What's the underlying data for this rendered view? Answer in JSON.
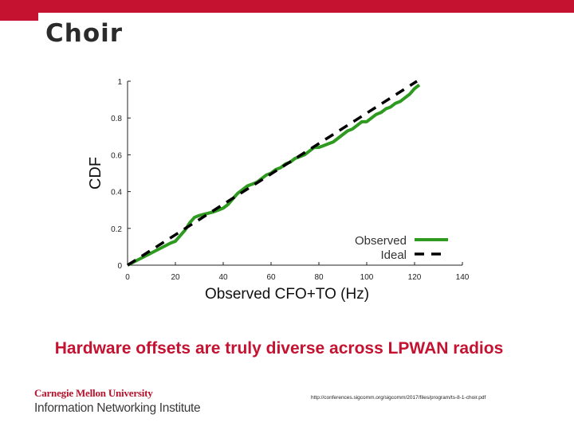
{
  "slide": {
    "title": "Choir",
    "caption": "Hardware offsets are truly diverse across LPWAN radios",
    "source_url": "http://conferences.sigcomm.org/sigcomm/2017/files/program/ts-8-1-choir.pdf",
    "logo": {
      "line1": "Carnegie Mellon University",
      "line2": "Information Networking Institute"
    },
    "colors": {
      "accent": "#c41230",
      "observed": "#2e9a1f",
      "ideal": "#000000"
    }
  },
  "chart_data": {
    "type": "line",
    "title": "",
    "xlabel": "Observed CFO+TO (Hz)",
    "ylabel": "CDF",
    "xlim": [
      0,
      140
    ],
    "ylim": [
      0,
      1
    ],
    "xticks": [
      "0",
      "20",
      "40",
      "60",
      "80",
      "100",
      "120",
      "140"
    ],
    "yticks": [
      "0",
      "0.2",
      "0.4",
      "0.6",
      "0.8",
      "1"
    ],
    "grid": false,
    "legend_position": "bottom-right",
    "series": [
      {
        "name": "Observed",
        "style": "solid",
        "color": "#2e9a1f",
        "x": [
          0,
          3,
          6,
          9,
          12,
          15,
          18,
          20,
          22,
          24,
          26,
          28,
          30,
          33,
          36,
          38,
          40,
          42,
          44,
          46,
          48,
          50,
          52,
          54,
          56,
          58,
          60,
          62,
          64,
          66,
          68,
          70,
          72,
          74,
          76,
          78,
          80,
          82,
          84,
          86,
          88,
          90,
          92,
          94,
          96,
          98,
          100,
          102,
          104,
          106,
          108,
          110,
          112,
          114,
          116,
          118,
          120,
          122
        ],
        "y": [
          0.0,
          0.02,
          0.04,
          0.06,
          0.08,
          0.1,
          0.12,
          0.13,
          0.16,
          0.19,
          0.23,
          0.26,
          0.27,
          0.28,
          0.29,
          0.3,
          0.31,
          0.33,
          0.36,
          0.39,
          0.41,
          0.43,
          0.44,
          0.45,
          0.47,
          0.49,
          0.5,
          0.52,
          0.53,
          0.55,
          0.56,
          0.58,
          0.59,
          0.6,
          0.62,
          0.64,
          0.64,
          0.65,
          0.66,
          0.67,
          0.69,
          0.71,
          0.73,
          0.74,
          0.76,
          0.78,
          0.78,
          0.8,
          0.82,
          0.83,
          0.85,
          0.86,
          0.88,
          0.89,
          0.91,
          0.93,
          0.96,
          0.98
        ]
      },
      {
        "name": "Ideal",
        "style": "dashed",
        "color": "#000000",
        "x": [
          0,
          121
        ],
        "y": [
          0,
          1
        ]
      }
    ]
  }
}
